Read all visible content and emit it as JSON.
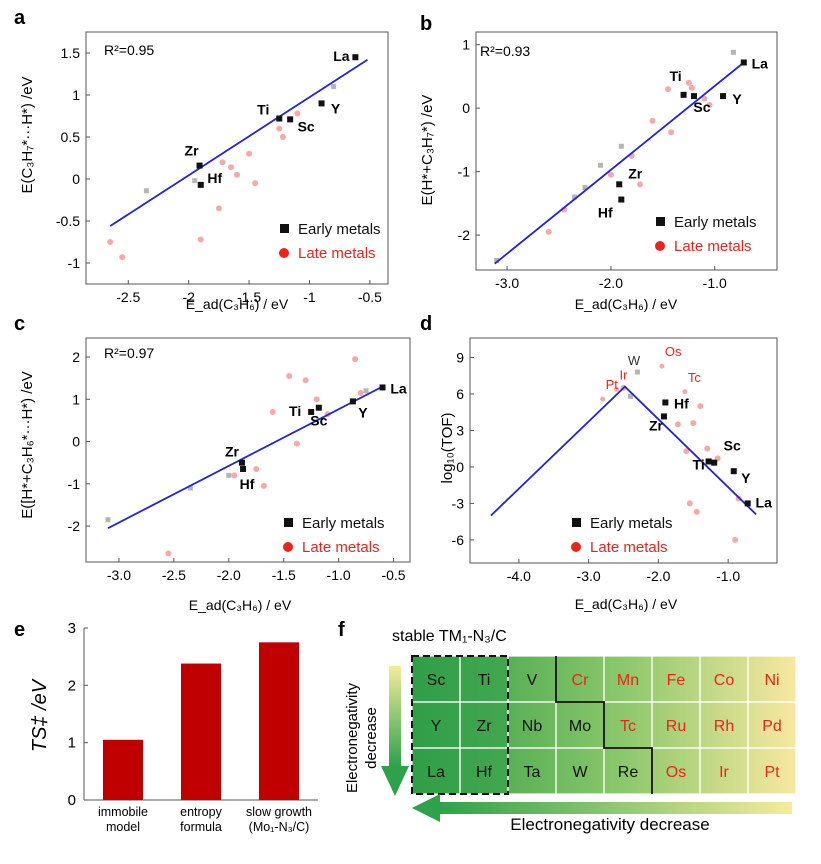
{
  "colors": {
    "early": "#111111",
    "late": "#e8251d",
    "late_light": "#f3aaa8",
    "early_light": "#b5b5b5",
    "fit": "#2323d8",
    "bar": "#c00000",
    "table_dark": "#30a84a",
    "table_light": "#f6e58d",
    "frame": "#555555"
  },
  "chart_data": [
    {
      "id": "a",
      "type": "scatter",
      "panel_label": "a",
      "r2": "R²=0.95",
      "ylabel": "E(C₃H₇*···H*) /eV",
      "xlabel": "E_ad(C₃H₆) / eV",
      "xlim": [
        -2.85,
        -0.35
      ],
      "ylim": [
        -1.25,
        1.75
      ],
      "xticks": [
        -2.5,
        -2,
        -1.5,
        -1,
        -0.5
      ],
      "xtick_labels": [
        "-2.5",
        "-2",
        "-1.5",
        "-1",
        "-0.5"
      ],
      "yticks": [
        -1,
        -0.5,
        0,
        0.5,
        1,
        1.5
      ],
      "ytick_labels": [
        "-1",
        "-0.5",
        "0",
        "0.5",
        "1",
        "1.5"
      ],
      "fit_line": [
        [
          -2.65,
          -0.56
        ],
        [
          -0.52,
          1.42
        ]
      ],
      "early_metals": [
        {
          "label": "La",
          "x": -0.62,
          "y": 1.45
        },
        {
          "label": "Y",
          "x": -0.9,
          "y": 0.9
        },
        {
          "label": "Sc",
          "x": -1.16,
          "y": 0.71
        },
        {
          "label": "Ti",
          "x": -1.25,
          "y": 0.72
        },
        {
          "label": "Zr",
          "x": -1.91,
          "y": 0.16
        },
        {
          "label": "Hf",
          "x": -1.9,
          "y": -0.07
        }
      ],
      "early_faint": [
        [
          -2.35,
          -0.14
        ],
        [
          -1.95,
          -0.02
        ],
        [
          -0.8,
          1.1
        ]
      ],
      "late_metals": [
        [
          -2.65,
          -0.75
        ],
        [
          -2.55,
          -0.93
        ],
        [
          -1.9,
          -0.72
        ],
        [
          -1.75,
          -0.35
        ],
        [
          -1.72,
          0.2
        ],
        [
          -1.65,
          0.14
        ],
        [
          -1.6,
          0.05
        ],
        [
          -1.5,
          0.3
        ],
        [
          -1.45,
          -0.05
        ],
        [
          -1.25,
          0.6
        ],
        [
          -1.22,
          0.5
        ],
        [
          -1.1,
          0.78
        ]
      ],
      "legend": {
        "early": "Early metals",
        "late": "Late metals"
      }
    },
    {
      "id": "b",
      "type": "scatter",
      "panel_label": "b",
      "r2": "R²=0.93",
      "ylabel": "E(H*+C₃H₇*) /eV",
      "xlabel": "E_ad(C₃H₆) / eV",
      "xlim": [
        -3.3,
        -0.4
      ],
      "ylim": [
        -2.55,
        1.2
      ],
      "xticks": [
        -3,
        -2,
        -1
      ],
      "xtick_labels": [
        "-3.0",
        "-2.0",
        "-1.0"
      ],
      "yticks": [
        -2,
        -1,
        0,
        1
      ],
      "ytick_labels": [
        "-2",
        "-1",
        "0",
        "1"
      ],
      "fit_line": [
        [
          -3.12,
          -2.45
        ],
        [
          -0.72,
          0.72
        ]
      ],
      "early_metals": [
        {
          "label": "La",
          "x": -0.72,
          "y": 0.72
        },
        {
          "label": "Y",
          "x": -0.92,
          "y": 0.19
        },
        {
          "label": "Sc",
          "x": -1.2,
          "y": 0.19
        },
        {
          "label": "Ti",
          "x": -1.3,
          "y": 0.21
        },
        {
          "label": "Zr",
          "x": -1.92,
          "y": -1.2
        },
        {
          "label": "Hf",
          "x": -1.9,
          "y": -1.44
        }
      ],
      "early_faint": [
        [
          -3.1,
          -2.4
        ],
        [
          -2.35,
          -1.4
        ],
        [
          -2.25,
          -1.25
        ],
        [
          -2.1,
          -0.9
        ],
        [
          -1.9,
          -0.6
        ],
        [
          -0.82,
          0.88
        ]
      ],
      "late_metals": [
        [
          -2.6,
          -1.95
        ],
        [
          -2.45,
          -1.6
        ],
        [
          -2.0,
          -1.05
        ],
        [
          -1.8,
          -0.75
        ],
        [
          -1.72,
          -1.2
        ],
        [
          -1.6,
          -0.2
        ],
        [
          -1.45,
          0.3
        ],
        [
          -1.42,
          -0.38
        ],
        [
          -1.25,
          0.4
        ],
        [
          -1.22,
          0.32
        ],
        [
          -1.1,
          0.15
        ],
        [
          -1.05,
          0.05
        ]
      ],
      "legend": {
        "early": "Early metals",
        "late": "Late metals"
      }
    },
    {
      "id": "c",
      "type": "scatter",
      "panel_label": "c",
      "r2": "R²=0.97",
      "ylabel": "E([H*+C₃H₆*···H*) /eV",
      "xlabel": "E_ad(C₃H₆) / eV",
      "xlim": [
        -3.3,
        -0.35
      ],
      "ylim": [
        -2.85,
        2.45
      ],
      "xticks": [
        -3,
        -2.5,
        -2,
        -1.5,
        -1,
        -0.5
      ],
      "xtick_labels": [
        "-3.0",
        "-2.5",
        "-2.0",
        "-1.5",
        "-1.0",
        "-0.5"
      ],
      "yticks": [
        -2,
        -1,
        0,
        1,
        2
      ],
      "ytick_labels": [
        "-2",
        "-1",
        "0",
        "1",
        "2"
      ],
      "fit_line": [
        [
          -3.1,
          -2.05
        ],
        [
          -0.6,
          1.3
        ]
      ],
      "early_metals": [
        {
          "label": "La",
          "x": -0.6,
          "y": 1.28
        },
        {
          "label": "Y",
          "x": -0.87,
          "y": 0.95
        },
        {
          "label": "Sc",
          "x": -1.18,
          "y": 0.8
        },
        {
          "label": "Ti",
          "x": -1.25,
          "y": 0.7
        },
        {
          "label": "Zr",
          "x": -1.88,
          "y": -0.5
        },
        {
          "label": "Hf",
          "x": -1.87,
          "y": -0.65
        }
      ],
      "early_faint": [
        [
          -3.1,
          -1.85
        ],
        [
          -2.35,
          -1.1
        ],
        [
          -2.0,
          -0.8
        ],
        [
          -0.75,
          1.2
        ]
      ],
      "late_metals": [
        [
          -2.55,
          -2.65
        ],
        [
          -1.95,
          -0.8
        ],
        [
          -1.75,
          -0.65
        ],
        [
          -1.68,
          -1.05
        ],
        [
          -1.6,
          0.7
        ],
        [
          -1.45,
          1.55
        ],
        [
          -1.38,
          -0.05
        ],
        [
          -1.3,
          1.45
        ],
        [
          -1.2,
          1.0
        ],
        [
          -1.1,
          0.65
        ],
        [
          -0.85,
          1.95
        ],
        [
          -0.8,
          1.15
        ]
      ],
      "legend": {
        "early": "Early metals",
        "late": "Late metals"
      }
    },
    {
      "id": "d",
      "type": "scatter",
      "panel_label": "d",
      "ylabel": "log₁₀(TOF)",
      "xlabel": "E_ad(C₃H₆) / eV",
      "xlim": [
        -4.7,
        -0.3
      ],
      "ylim": [
        -7.9,
        10.6
      ],
      "xticks": [
        -4,
        -3,
        -2,
        -1
      ],
      "xtick_labels": [
        "-4.0",
        "-3.0",
        "-2.0",
        "-1.0"
      ],
      "yticks": [
        -6,
        -3,
        0,
        3,
        6,
        9
      ],
      "ytick_labels": [
        "-6",
        "-3",
        "0",
        "3",
        "6",
        "9"
      ],
      "fit_line": [
        [
          -4.4,
          -4.0
        ],
        [
          -2.48,
          6.6
        ],
        [
          -0.6,
          -3.9
        ]
      ],
      "early_metals": [
        {
          "label": "La",
          "x": -0.72,
          "y": -3.0
        },
        {
          "label": "Y",
          "x": -0.92,
          "y": -0.35
        },
        {
          "label": "Sc",
          "x": -1.2,
          "y": 0.35
        },
        {
          "label": "Ti",
          "x": -1.28,
          "y": 0.45
        },
        {
          "label": "Zr",
          "x": -1.92,
          "y": 4.15
        },
        {
          "label": "Hf",
          "x": -1.9,
          "y": 5.3
        }
      ],
      "early_faint": [
        [
          -2.3,
          7.8
        ],
        [
          -2.4,
          5.8
        ]
      ],
      "late_labeled": [
        {
          "label": "Os",
          "x": -1.95,
          "y": 9.1
        },
        {
          "label": "Tc",
          "x": -1.62,
          "y": 7.0
        },
        {
          "label": "Ir",
          "x": -2.6,
          "y": 7.2
        },
        {
          "label": "Pt",
          "x": -2.8,
          "y": 6.4
        }
      ],
      "faint_labels": [
        {
          "label": "W",
          "x": -2.35,
          "y": 8.4
        }
      ],
      "late_metals": [
        [
          -2.5,
          6.5
        ],
        [
          -1.72,
          3.5
        ],
        [
          -1.5,
          3.6
        ],
        [
          -1.55,
          -3.0
        ],
        [
          -1.45,
          -3.7
        ],
        [
          -1.4,
          5.0
        ],
        [
          -1.3,
          1.5
        ],
        [
          -1.15,
          0.7
        ],
        [
          -0.9,
          -6.0
        ],
        [
          -0.85,
          -2.6
        ],
        [
          -1.6,
          1.3
        ]
      ],
      "legend": {
        "early": "Early metals",
        "late": "Late metals"
      }
    },
    {
      "id": "e",
      "type": "bar",
      "panel_label": "e",
      "ylabel": "TS‡ /eV",
      "categories": [
        [
          "immobile",
          "model"
        ],
        [
          "entropy",
          "formula"
        ],
        [
          "slow growth",
          "(Mo₁-N₃/C)"
        ]
      ],
      "values": [
        1.05,
        2.38,
        2.75
      ],
      "ylim": [
        0,
        3
      ],
      "yticks": [
        0,
        1,
        2,
        3
      ],
      "ytick_labels": [
        "0",
        "1",
        "2",
        "3"
      ]
    }
  ],
  "table": {
    "panel_label": "f",
    "caption": "stable TM₁-N₃/C",
    "vertical_axis": "Electronegativity decrease",
    "vertical_axis_lines": [
      "Electronegativity",
      "decrease"
    ],
    "horizontal_axis": "Electronegativity decrease",
    "rows": [
      [
        {
          "el": "Sc",
          "late": false
        },
        {
          "el": "Ti",
          "late": false
        },
        {
          "el": "V",
          "late": false
        },
        {
          "el": "Cr",
          "late": true
        },
        {
          "el": "Mn",
          "late": true
        },
        {
          "el": "Fe",
          "late": true
        },
        {
          "el": "Co",
          "late": true
        },
        {
          "el": "Ni",
          "late": true
        }
      ],
      [
        {
          "el": "Y",
          "late": false
        },
        {
          "el": "Zr",
          "late": false
        },
        {
          "el": "Nb",
          "late": false
        },
        {
          "el": "Mo",
          "late": false
        },
        {
          "el": "Tc",
          "late": true
        },
        {
          "el": "Ru",
          "late": true
        },
        {
          "el": "Rh",
          "late": true
        },
        {
          "el": "Pd",
          "late": true
        }
      ],
      [
        {
          "el": "La",
          "late": false
        },
        {
          "el": "Hf",
          "late": false
        },
        {
          "el": "Ta",
          "late": false
        },
        {
          "el": "W",
          "late": false
        },
        {
          "el": "Re",
          "late": false
        },
        {
          "el": "Os",
          "late": true
        },
        {
          "el": "Ir",
          "late": true
        },
        {
          "el": "Pt",
          "late": true
        }
      ]
    ]
  }
}
